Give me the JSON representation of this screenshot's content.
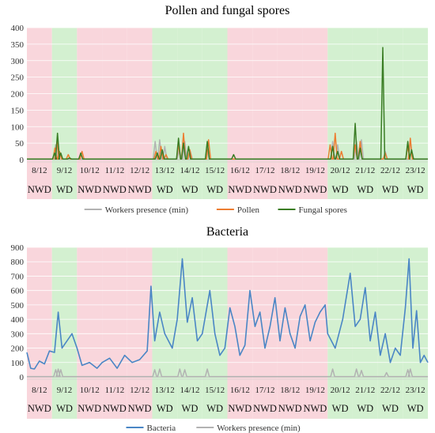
{
  "chart_data": [
    {
      "type": "line",
      "title": "Pollen and fungal spores",
      "ylim": [
        0,
        400
      ],
      "yticks": [
        0,
        50,
        100,
        150,
        200,
        250,
        300,
        350,
        400
      ],
      "dates": [
        "8/12",
        "9/12",
        "10/12",
        "11/12",
        "12/12",
        "13/12",
        "14/12",
        "15/12",
        "16/12",
        "17/12",
        "18/12",
        "19/12",
        "20/12",
        "21/12",
        "22/12",
        "23/12"
      ],
      "day_types": [
        "NWD",
        "WD",
        "NWD",
        "NWD",
        "NWD",
        "WD",
        "WD",
        "WD",
        "NWD",
        "NWD",
        "NWD",
        "NWD",
        "WD",
        "WD",
        "WD",
        "WD"
      ],
      "day_colors": {
        "NWD": "#f9d6dc",
        "WD": "#d3f0d0"
      },
      "legend_position": "bottom",
      "series": [
        {
          "name": "Workers presence (min)",
          "color": "#b2b2b2",
          "points": [
            [
              1.15,
              45
            ],
            [
              1.22,
              55
            ],
            [
              1.35,
              20
            ],
            [
              5.12,
              55
            ],
            [
              5.3,
              60
            ],
            [
              5.5,
              40
            ],
            [
              6.08,
              30
            ],
            [
              6.3,
              55
            ],
            [
              6.52,
              25
            ],
            [
              7.2,
              30
            ],
            [
              12.2,
              55
            ],
            [
              12.4,
              45
            ],
            [
              13.15,
              55
            ],
            [
              13.35,
              60
            ],
            [
              14.3,
              25
            ],
            [
              15.3,
              60
            ]
          ]
        },
        {
          "name": "Pollen",
          "color": "#ed7d31",
          "points": [
            [
              1.12,
              35
            ],
            [
              1.2,
              55
            ],
            [
              1.3,
              25
            ],
            [
              1.65,
              15
            ],
            [
              2.2,
              25
            ],
            [
              5.15,
              25
            ],
            [
              5.35,
              40
            ],
            [
              5.55,
              15
            ],
            [
              6.05,
              45
            ],
            [
              6.25,
              80
            ],
            [
              6.5,
              30
            ],
            [
              7.25,
              60
            ],
            [
              12.1,
              45
            ],
            [
              12.3,
              80
            ],
            [
              12.55,
              25
            ],
            [
              13.1,
              45
            ],
            [
              13.3,
              55
            ],
            [
              14.3,
              20
            ],
            [
              15.2,
              40
            ],
            [
              15.3,
              65
            ]
          ]
        },
        {
          "name": "Fungal spores",
          "color": "#3a7d24",
          "points": [
            [
              1.1,
              20
            ],
            [
              1.22,
              80
            ],
            [
              1.35,
              20
            ],
            [
              1.7,
              5
            ],
            [
              2.15,
              20
            ],
            [
              5.2,
              20
            ],
            [
              5.4,
              30
            ],
            [
              6.05,
              65
            ],
            [
              6.25,
              50
            ],
            [
              6.45,
              40
            ],
            [
              7.2,
              55
            ],
            [
              8.25,
              15
            ],
            [
              12.2,
              40
            ],
            [
              12.4,
              25
            ],
            [
              13.1,
              110
            ],
            [
              13.3,
              35
            ],
            [
              14.2,
              340
            ],
            [
              15.2,
              55
            ],
            [
              15.35,
              30
            ]
          ]
        }
      ]
    },
    {
      "type": "line",
      "title": "Bacteria",
      "ylim": [
        0,
        900
      ],
      "yticks": [
        0,
        100,
        200,
        300,
        400,
        500,
        600,
        700,
        800,
        900
      ],
      "dates": [
        "8/12",
        "9/12",
        "10/12",
        "11/12",
        "12/12",
        "13/12",
        "14/12",
        "15/12",
        "16/12",
        "17/12",
        "18/12",
        "19/12",
        "20/12",
        "21/12",
        "22/12",
        "23/12"
      ],
      "day_types": [
        "NWD",
        "WD",
        "NWD",
        "NWD",
        "NWD",
        "WD",
        "WD",
        "WD",
        "NWD",
        "NWD",
        "NWD",
        "NWD",
        "WD",
        "WD",
        "WD",
        "WD"
      ],
      "day_colors": {
        "NWD": "#f9d6dc",
        "WD": "#d3f0d0"
      },
      "legend_position": "bottom",
      "series": [
        {
          "name": "Bacteria",
          "color": "#4a86c5",
          "points": [
            [
              0,
              170
            ],
            [
              0.15,
              60
            ],
            [
              0.3,
              55
            ],
            [
              0.5,
              110
            ],
            [
              0.7,
              90
            ],
            [
              0.9,
              180
            ],
            [
              1.1,
              170
            ],
            [
              1.25,
              450
            ],
            [
              1.4,
              200
            ],
            [
              1.6,
              250
            ],
            [
              1.8,
              300
            ],
            [
              2.0,
              200
            ],
            [
              2.2,
              80
            ],
            [
              2.5,
              100
            ],
            [
              2.8,
              60
            ],
            [
              3.0,
              100
            ],
            [
              3.3,
              130
            ],
            [
              3.6,
              60
            ],
            [
              3.9,
              150
            ],
            [
              4.2,
              100
            ],
            [
              4.5,
              120
            ],
            [
              4.8,
              180
            ],
            [
              4.95,
              630
            ],
            [
              5.1,
              250
            ],
            [
              5.3,
              450
            ],
            [
              5.5,
              300
            ],
            [
              5.8,
              200
            ],
            [
              6.0,
              400
            ],
            [
              6.2,
              820
            ],
            [
              6.4,
              380
            ],
            [
              6.6,
              550
            ],
            [
              6.8,
              250
            ],
            [
              7.0,
              300
            ],
            [
              7.3,
              600
            ],
            [
              7.5,
              300
            ],
            [
              7.7,
              150
            ],
            [
              7.9,
              200
            ],
            [
              8.1,
              480
            ],
            [
              8.3,
              350
            ],
            [
              8.5,
              150
            ],
            [
              8.7,
              220
            ],
            [
              8.9,
              600
            ],
            [
              9.1,
              350
            ],
            [
              9.3,
              450
            ],
            [
              9.5,
              200
            ],
            [
              9.7,
              350
            ],
            [
              9.9,
              550
            ],
            [
              10.1,
              250
            ],
            [
              10.3,
              480
            ],
            [
              10.5,
              300
            ],
            [
              10.7,
              200
            ],
            [
              10.9,
              420
            ],
            [
              11.1,
              500
            ],
            [
              11.3,
              250
            ],
            [
              11.5,
              380
            ],
            [
              11.7,
              450
            ],
            [
              11.9,
              500
            ],
            [
              12.0,
              300
            ],
            [
              12.3,
              200
            ],
            [
              12.6,
              400
            ],
            [
              12.9,
              720
            ],
            [
              13.1,
              350
            ],
            [
              13.3,
              400
            ],
            [
              13.5,
              620
            ],
            [
              13.7,
              250
            ],
            [
              13.9,
              450
            ],
            [
              14.1,
              150
            ],
            [
              14.3,
              300
            ],
            [
              14.5,
              100
            ],
            [
              14.7,
              200
            ],
            [
              14.9,
              150
            ],
            [
              15.1,
              480
            ],
            [
              15.25,
              820
            ],
            [
              15.4,
              200
            ],
            [
              15.55,
              460
            ],
            [
              15.7,
              100
            ],
            [
              15.85,
              150
            ],
            [
              16,
              100
            ]
          ]
        },
        {
          "name": "Workers presence (min)",
          "color": "#b2b2b2",
          "points": [
            [
              1.15,
              50
            ],
            [
              1.25,
              55
            ],
            [
              1.35,
              50
            ],
            [
              5.1,
              50
            ],
            [
              5.3,
              55
            ],
            [
              6.1,
              55
            ],
            [
              6.3,
              50
            ],
            [
              7.2,
              55
            ],
            [
              12.2,
              55
            ],
            [
              13.15,
              55
            ],
            [
              13.35,
              45
            ],
            [
              14.35,
              30
            ],
            [
              15.2,
              50
            ],
            [
              15.3,
              55
            ]
          ]
        }
      ]
    }
  ]
}
